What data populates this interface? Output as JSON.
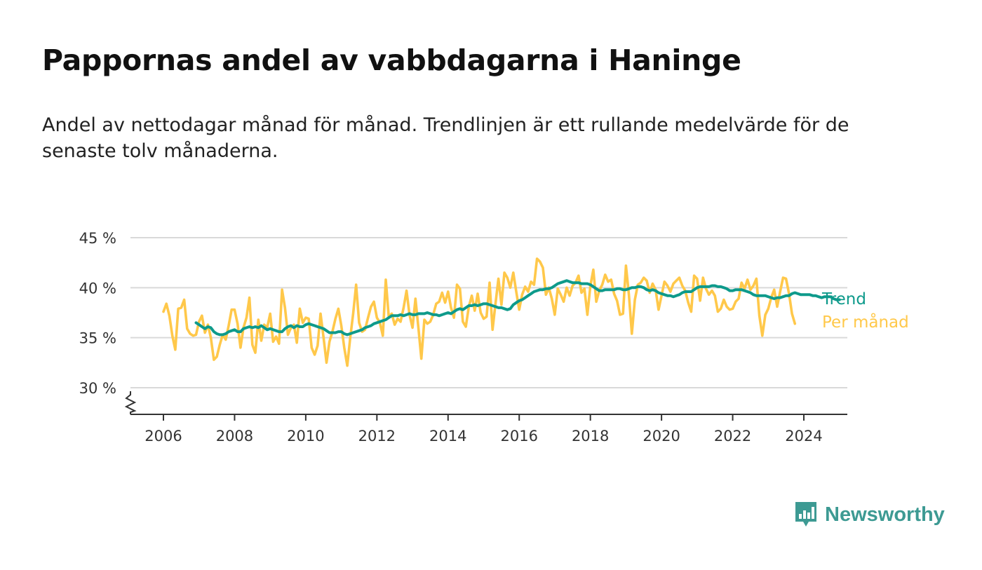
{
  "title": "Pappornas andel av vabbdagarna i Haninge",
  "subtitle": "Andel av nettodagar månad för månad. Trendlinjen är ett rullande medelvärde för de senaste tolv månaderna.",
  "brand": {
    "name": "Newsworthy",
    "color": "#3d9a93"
  },
  "chart_data": {
    "type": "line",
    "title": "Pappornas andel av vabbdagarna i Haninge",
    "xlabel": "",
    "ylabel": "",
    "x_ticks": [
      "2006",
      "2008",
      "2010",
      "2012",
      "2014",
      "2016",
      "2018",
      "2020",
      "2022",
      "2024"
    ],
    "y_ticks": [
      "30 %",
      "35 %",
      "40 %",
      "45 %"
    ],
    "ylim": [
      30,
      45
    ],
    "y_axis_break": true,
    "grid": true,
    "legend": "direct labels at right end of lines",
    "series": [
      {
        "name": "Per månad",
        "color": "#ffc84a",
        "start": "2006-01",
        "values": [
          37.6,
          38.4,
          37.2,
          35.2,
          33.8,
          37.9,
          38.0,
          38.8,
          35.9,
          35.4,
          35.2,
          35.3,
          36.6,
          37.2,
          35.5,
          36.3,
          35.0,
          32.8,
          33.1,
          34.3,
          35.3,
          34.8,
          36.2,
          37.8,
          37.8,
          36.4,
          34.0,
          36.0,
          37.0,
          39.0,
          34.3,
          33.5,
          36.8,
          34.7,
          36.3,
          36.0,
          37.4,
          34.6,
          35.1,
          34.4,
          39.8,
          38.0,
          35.3,
          36.0,
          36.3,
          34.5,
          37.9,
          36.5,
          37.0,
          36.9,
          34.0,
          33.3,
          34.2,
          37.4,
          35.0,
          32.5,
          34.6,
          35.6,
          36.9,
          37.9,
          36.2,
          34.0,
          32.2,
          35.0,
          37.4,
          40.3,
          36.5,
          35.6,
          35.8,
          37.0,
          38.1,
          38.6,
          37.0,
          36.5,
          35.2,
          40.8,
          37.1,
          37.4,
          36.3,
          36.9,
          36.6,
          38.0,
          39.7,
          37.3,
          36.0,
          38.9,
          36.0,
          32.9,
          36.8,
          36.4,
          36.6,
          37.3,
          38.4,
          38.6,
          39.5,
          38.5,
          39.6,
          38.0,
          37.0,
          40.3,
          39.9,
          36.6,
          36.1,
          38.1,
          39.2,
          37.7,
          39.4,
          37.5,
          36.9,
          37.1,
          40.5,
          35.8,
          38.4,
          40.9,
          38.3,
          41.5,
          41.0,
          40.0,
          41.5,
          39.6,
          37.8,
          39.3,
          40.1,
          39.6,
          40.6,
          40.3,
          42.9,
          42.6,
          42.0,
          39.3,
          40.0,
          38.9,
          37.3,
          39.9,
          39.3,
          38.6,
          40.0,
          39.2,
          40.2,
          40.5,
          41.2,
          39.5,
          39.9,
          37.3,
          40.2,
          41.8,
          38.6,
          39.7,
          40.3,
          41.3,
          40.6,
          40.8,
          39.4,
          38.7,
          37.3,
          37.4,
          42.2,
          39.3,
          35.4,
          38.8,
          40.3,
          40.5,
          41.0,
          40.7,
          39.5,
          40.4,
          39.8,
          37.8,
          39.2,
          40.6,
          40.2,
          39.6,
          40.4,
          40.7,
          41.0,
          40.2,
          39.7,
          38.5,
          37.6,
          41.2,
          40.9,
          38.7,
          41.0,
          39.9,
          39.3,
          39.7,
          39.2,
          37.6,
          37.9,
          38.8,
          38.1,
          37.8,
          37.9,
          38.6,
          38.9,
          40.5,
          39.9,
          40.8,
          39.8,
          40.2,
          40.9,
          37.2,
          35.2,
          37.3,
          37.9,
          39.0,
          39.8,
          38.1,
          39.6,
          41.0,
          40.9,
          39.4,
          37.4,
          36.4
        ]
      },
      {
        "name": "Trend",
        "color": "#0e9a8b",
        "start": "2006-12",
        "values": [
          36.5,
          36.3,
          36.1,
          35.9,
          36.1,
          36.0,
          35.6,
          35.4,
          35.3,
          35.3,
          35.4,
          35.6,
          35.7,
          35.8,
          35.6,
          35.6,
          35.9,
          36.0,
          36.1,
          36.0,
          36.1,
          36.0,
          36.2,
          36.0,
          35.8,
          35.9,
          35.8,
          35.7,
          35.6,
          35.6,
          35.9,
          36.1,
          36.2,
          36.0,
          36.2,
          36.1,
          36.1,
          36.3,
          36.4,
          36.3,
          36.2,
          36.1,
          36.0,
          35.9,
          35.7,
          35.5,
          35.5,
          35.5,
          35.6,
          35.6,
          35.4,
          35.3,
          35.4,
          35.5,
          35.6,
          35.7,
          35.8,
          36.0,
          36.1,
          36.2,
          36.4,
          36.5,
          36.6,
          36.7,
          36.8,
          37.0,
          37.2,
          37.2,
          37.2,
          37.3,
          37.2,
          37.3,
          37.4,
          37.3,
          37.3,
          37.4,
          37.4,
          37.4,
          37.5,
          37.4,
          37.3,
          37.3,
          37.2,
          37.3,
          37.4,
          37.5,
          37.4,
          37.6,
          37.8,
          37.9,
          37.8,
          38.0,
          38.2,
          38.2,
          38.3,
          38.2,
          38.3,
          38.4,
          38.4,
          38.3,
          38.2,
          38.1,
          38.0,
          38.0,
          37.9,
          37.8,
          37.9,
          38.3,
          38.5,
          38.7,
          38.8,
          39.0,
          39.2,
          39.4,
          39.6,
          39.7,
          39.8,
          39.8,
          39.9,
          39.9,
          40.0,
          40.2,
          40.4,
          40.5,
          40.6,
          40.7,
          40.6,
          40.5,
          40.5,
          40.5,
          40.4,
          40.4,
          40.4,
          40.3,
          40.1,
          39.9,
          39.7,
          39.7,
          39.8,
          39.8,
          39.8,
          39.8,
          39.9,
          39.9,
          39.8,
          39.8,
          39.9,
          40.0,
          40.0,
          40.1,
          40.1,
          40.0,
          39.8,
          39.7,
          39.8,
          39.7,
          39.5,
          39.4,
          39.3,
          39.2,
          39.2,
          39.1,
          39.2,
          39.3,
          39.5,
          39.6,
          39.6,
          39.6,
          39.8,
          40.0,
          40.1,
          40.1,
          40.1,
          40.1,
          40.2,
          40.2,
          40.1,
          40.1,
          40.0,
          39.9,
          39.7,
          39.7,
          39.8,
          39.8,
          39.8,
          39.7,
          39.6,
          39.5,
          39.3,
          39.2,
          39.2,
          39.2,
          39.2,
          39.1,
          39.0,
          38.9,
          39.0,
          39.0,
          39.1,
          39.2,
          39.2,
          39.4,
          39.5,
          39.4,
          39.3,
          39.3,
          39.3,
          39.3,
          39.2,
          39.2,
          39.1,
          39.0,
          39.1,
          39.1,
          39.1,
          38.9,
          38.8,
          38.8
        ]
      }
    ]
  }
}
